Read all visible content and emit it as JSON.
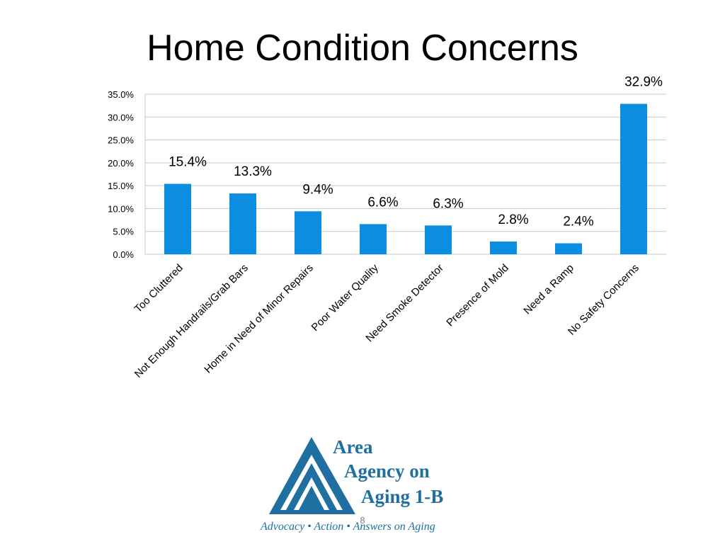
{
  "slide": {
    "title": "Home Condition Concerns",
    "page_number": "8"
  },
  "chart_data": {
    "type": "bar",
    "title": "",
    "xlabel": "",
    "ylabel": "",
    "categories": [
      "Too Cluttered",
      "Not Enough Handrails/Grab Bars",
      "Home in Need of Minor Repairs",
      "Poor Water Quality",
      "Need Smoke Detector",
      "Presence of Mold",
      "Need a Ramp",
      "No Safety Concerns"
    ],
    "values": [
      15.4,
      13.3,
      9.4,
      6.6,
      6.3,
      2.8,
      2.4,
      32.9
    ],
    "data_labels": [
      "15.4%",
      "13.3%",
      "9.4%",
      "6.6%",
      "6.3%",
      "2.8%",
      "2.4%",
      "32.9%"
    ],
    "ylim": [
      0,
      35
    ],
    "y_ticks": [
      "0.0%",
      "5.0%",
      "10.0%",
      "15.0%",
      "20.0%",
      "25.0%",
      "30.0%",
      "35.0%"
    ],
    "y_tick_values": [
      0,
      5,
      10,
      15,
      20,
      25,
      30,
      35
    ],
    "grid": true,
    "legend": "none",
    "bar_color": "#0b8de0",
    "grid_color": "#c8c8c8"
  },
  "logo": {
    "line1": "Area",
    "line2": "Agency on",
    "line3": "Aging 1-B",
    "tagline": "Advocacy • Action • Answers on Aging",
    "color": "#1f6fa0"
  }
}
